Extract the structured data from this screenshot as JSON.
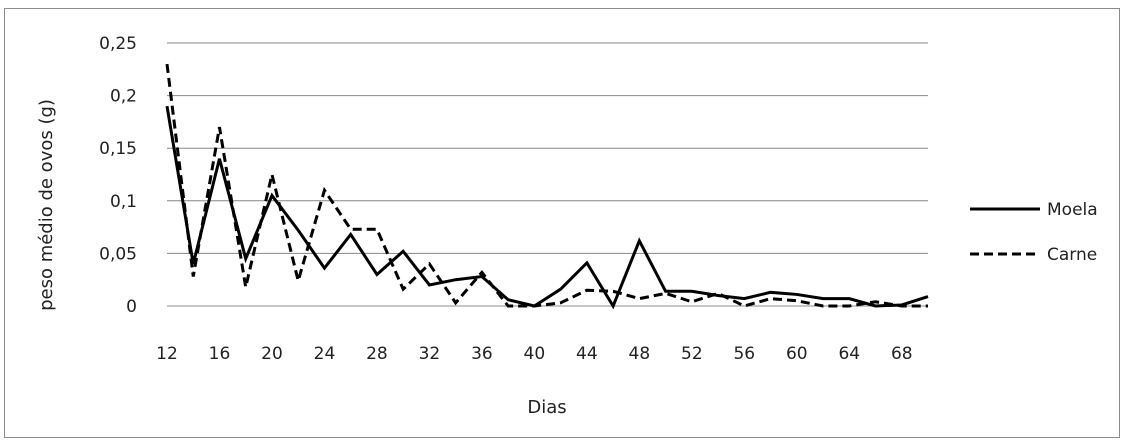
{
  "chart_data": {
    "type": "line",
    "title": "",
    "xlabel": "Dias",
    "ylabel": "peso médio de ovos (g)",
    "ylim": [
      0,
      0.25
    ],
    "y_ticks": [
      "0",
      "0,05",
      "0,1",
      "0,15",
      "0,2",
      "0,25"
    ],
    "x_ticks": [
      "12",
      "16",
      "20",
      "24",
      "28",
      "32",
      "36",
      "40",
      "44",
      "48",
      "52",
      "56",
      "60",
      "64",
      "68"
    ],
    "grid": "horizontal",
    "legend_position": "right",
    "x": [
      12,
      14,
      16,
      18,
      20,
      22,
      24,
      26,
      28,
      30,
      32,
      34,
      36,
      38,
      40,
      42,
      44,
      46,
      48,
      50,
      52,
      54,
      56,
      58,
      60,
      62,
      64,
      66,
      68,
      70
    ],
    "series": [
      {
        "name": "Moela",
        "style": "solid",
        "color": "#000000",
        "values": [
          0.19,
          0.04,
          0.14,
          0.045,
          0.105,
          0.072,
          0.036,
          0.068,
          0.03,
          0.052,
          0.02,
          0.025,
          0.028,
          0.006,
          0.0,
          0.016,
          0.041,
          0.0,
          0.062,
          0.014,
          0.014,
          0.01,
          0.007,
          0.013,
          0.011,
          0.007,
          0.007,
          0.0,
          0.001,
          0.009
        ]
      },
      {
        "name": "Carne",
        "style": "dashed",
        "color": "#000000",
        "values": [
          0.23,
          0.028,
          0.17,
          0.018,
          0.125,
          0.024,
          0.11,
          0.073,
          0.073,
          0.016,
          0.04,
          0.003,
          0.032,
          0.0,
          0.0,
          0.003,
          0.015,
          0.014,
          0.007,
          0.012,
          0.004,
          0.012,
          0.0,
          0.007,
          0.005,
          0.0,
          0.0,
          0.004,
          0.0,
          0.0
        ]
      }
    ]
  }
}
